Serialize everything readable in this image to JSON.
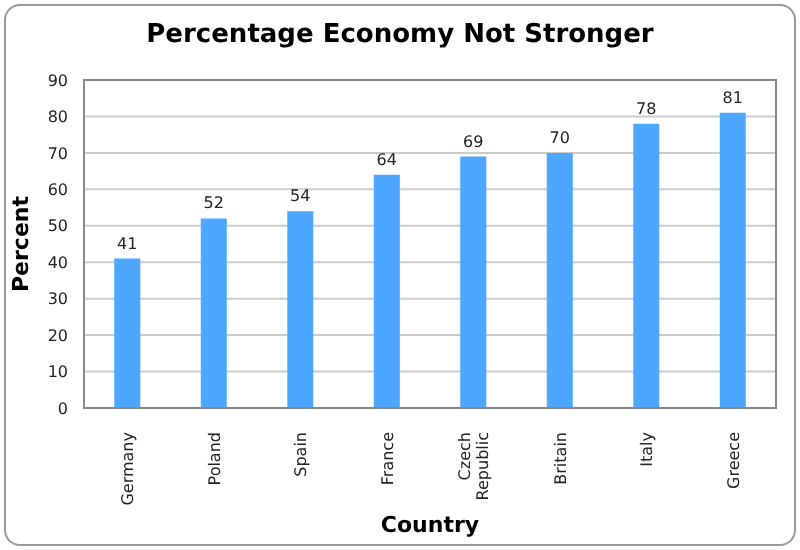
{
  "chart_data": {
    "type": "bar",
    "title": "Percentage Economy Not Stronger",
    "xlabel": "Country",
    "ylabel": "Percent",
    "categories": [
      "Germany",
      "Poland",
      "Spain",
      "France",
      "Czech Republic",
      "Britain",
      "Italy",
      "Greece"
    ],
    "values": [
      41,
      52,
      54,
      64,
      69,
      70,
      78,
      81
    ],
    "color": "#4da6ff",
    "ylim": [
      0,
      90
    ],
    "yticks": [
      0,
      10,
      20,
      30,
      40,
      50,
      60,
      70,
      80,
      90
    ],
    "grid": "y",
    "data_labels": true
  }
}
